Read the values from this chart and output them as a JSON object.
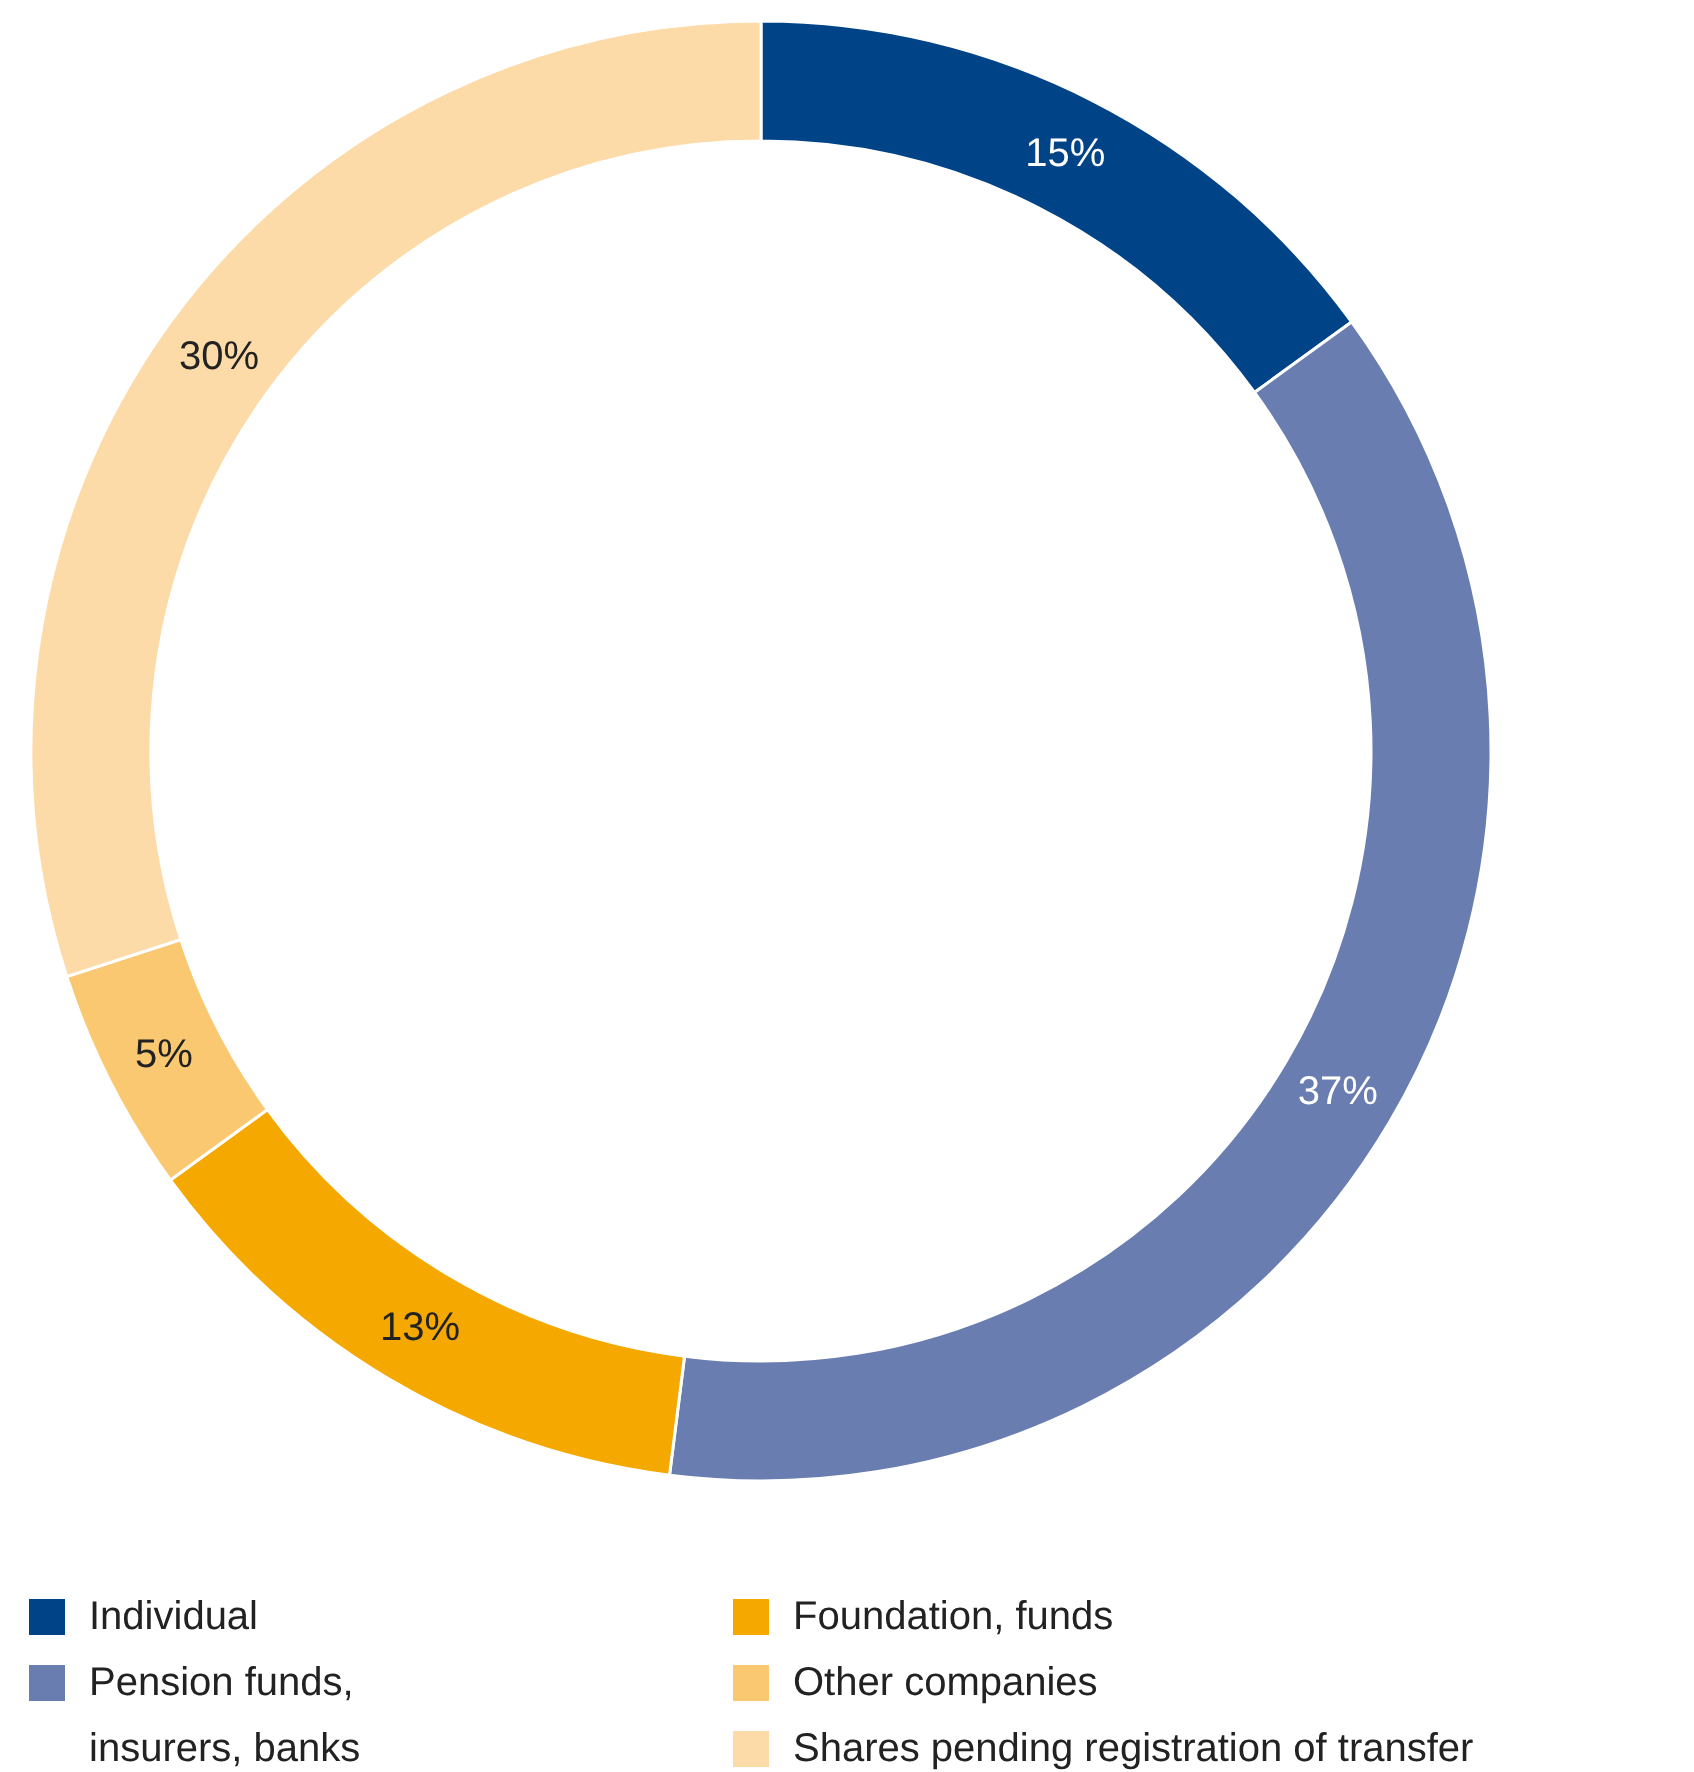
{
  "chart_data": {
    "type": "donut",
    "categories": [
      "Individual",
      "Pension funds, insurers, banks",
      "Foundation, funds",
      "Other companies",
      "Shares pending registration of transfer"
    ],
    "values": [
      15,
      37,
      13,
      5,
      30
    ],
    "colors": [
      "#004387",
      "#6a7db1",
      "#f5a800",
      "#f9c870",
      "#fddba8"
    ],
    "value_labels": [
      "15%",
      "37%",
      "13%",
      "5%",
      "30%"
    ],
    "legend": "bottom"
  }
}
